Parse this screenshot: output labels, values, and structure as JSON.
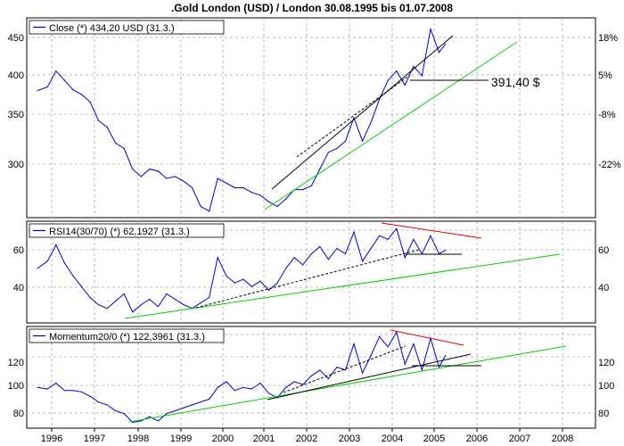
{
  "title": ".Gold London (USD) / London 30.08.1995 bis 01.07.2008",
  "colors": {
    "series": "#0000c8",
    "trend_green": "#00d000",
    "trend_red": "#e00000",
    "trend_black": "#000000",
    "grid": "#a8a8a8",
    "border": "#000000"
  },
  "x_axis": {
    "tick_labels": [
      "1996",
      "1997",
      "1998",
      "1999",
      "2000",
      "2001",
      "2002",
      "2003",
      "2004",
      "2005",
      "2006",
      "2007",
      "2008"
    ]
  },
  "annotation": "391,40 $",
  "chart_data": [
    {
      "type": "line",
      "legend": "Close (*) 434,20 USD (31.3.)",
      "left_ticks": [
        "450",
        "400",
        "350",
        "300"
      ],
      "right_ticks": [
        "18%",
        "5%",
        "-8%",
        "-22%"
      ],
      "ylim": [
        248,
        462
      ],
      "x": [
        1995.67,
        1995.9,
        1996.1,
        1996.3,
        1996.5,
        1996.7,
        1996.9,
        1997.1,
        1997.3,
        1997.5,
        1997.7,
        1997.9,
        1998.1,
        1998.3,
        1998.5,
        1998.7,
        1998.9,
        1999.1,
        1999.3,
        1999.5,
        1999.7,
        1999.9,
        2000.1,
        2000.3,
        2000.5,
        2000.7,
        2000.9,
        2001.1,
        2001.3,
        2001.5,
        2001.7,
        2001.9,
        2002.1,
        2002.3,
        2002.5,
        2002.7,
        2002.9,
        2003.1,
        2003.3,
        2003.5,
        2003.7,
        2003.9,
        2004.1,
        2004.3,
        2004.5,
        2004.7,
        2004.9,
        2005.1,
        2005.25
      ],
      "y": [
        384,
        388,
        405,
        395,
        385,
        380,
        372,
        352,
        345,
        328,
        322,
        300,
        292,
        300,
        298,
        290,
        292,
        287,
        280,
        260,
        255,
        290,
        285,
        280,
        280,
        275,
        272,
        265,
        260,
        268,
        278,
        278,
        282,
        300,
        318,
        322,
        330,
        355,
        330,
        350,
        375,
        395,
        405,
        390,
        410,
        400,
        450,
        425,
        434
      ]
    },
    {
      "type": "line",
      "legend": "RSI14(30/70) (*) 62,1927 (31.3.)",
      "left_ticks": [
        "60",
        "40"
      ],
      "right_ticks": [
        "60",
        "40"
      ],
      "ylim": [
        22,
        78
      ],
      "x": [
        1995.67,
        1995.9,
        1996.1,
        1996.3,
        1996.5,
        1996.7,
        1996.9,
        1997.1,
        1997.3,
        1997.5,
        1997.7,
        1997.9,
        1998.1,
        1998.3,
        1998.5,
        1998.7,
        1998.9,
        1999.1,
        1999.3,
        1999.5,
        1999.7,
        1999.9,
        2000.1,
        2000.3,
        2000.5,
        2000.7,
        2000.9,
        2001.1,
        2001.3,
        2001.5,
        2001.7,
        2001.9,
        2002.1,
        2002.3,
        2002.5,
        2002.7,
        2002.9,
        2003.1,
        2003.3,
        2003.5,
        2003.7,
        2003.9,
        2004.1,
        2004.3,
        2004.5,
        2004.7,
        2004.9,
        2005.1,
        2005.25
      ],
      "y": [
        52,
        56,
        65,
        55,
        48,
        42,
        36,
        32,
        30,
        34,
        38,
        28,
        32,
        35,
        31,
        38,
        35,
        32,
        30,
        33,
        36,
        58,
        48,
        44,
        46,
        42,
        45,
        40,
        44,
        52,
        58,
        54,
        60,
        64,
        57,
        63,
        60,
        72,
        56,
        63,
        70,
        68,
        74,
        58,
        68,
        60,
        70,
        60,
        62
      ]
    },
    {
      "type": "line",
      "legend": "Momentum20/0 (*) 122,3961 (31.3.)",
      "left_ticks": [
        "120",
        "100",
        "80"
      ],
      "right_ticks": [
        "120",
        "100",
        "80"
      ],
      "ylim": [
        72,
        142
      ],
      "x": [
        1995.67,
        1995.9,
        1996.1,
        1996.3,
        1996.5,
        1996.7,
        1996.9,
        1997.1,
        1997.3,
        1997.5,
        1997.7,
        1997.9,
        1998.1,
        1998.3,
        1998.5,
        1998.7,
        1998.9,
        1999.1,
        1999.3,
        1999.5,
        1999.7,
        1999.9,
        2000.1,
        2000.3,
        2000.5,
        2000.7,
        2000.9,
        2001.1,
        2001.3,
        2001.5,
        2001.7,
        2001.9,
        2002.1,
        2002.3,
        2002.5,
        2002.7,
        2002.9,
        2003.1,
        2003.3,
        2003.5,
        2003.7,
        2003.9,
        2004.1,
        2004.3,
        2004.5,
        2004.7,
        2004.9,
        2005.1,
        2005.25
      ],
      "y": [
        100,
        99,
        103,
        98,
        98,
        97,
        94,
        90,
        88,
        84,
        82,
        76,
        77,
        80,
        77,
        82,
        84,
        86,
        88,
        90,
        92,
        100,
        104,
        98,
        100,
        99,
        103,
        96,
        93,
        100,
        104,
        102,
        108,
        112,
        106,
        114,
        112,
        130,
        110,
        122,
        135,
        128,
        138,
        116,
        130,
        112,
        134,
        114,
        122
      ]
    }
  ]
}
